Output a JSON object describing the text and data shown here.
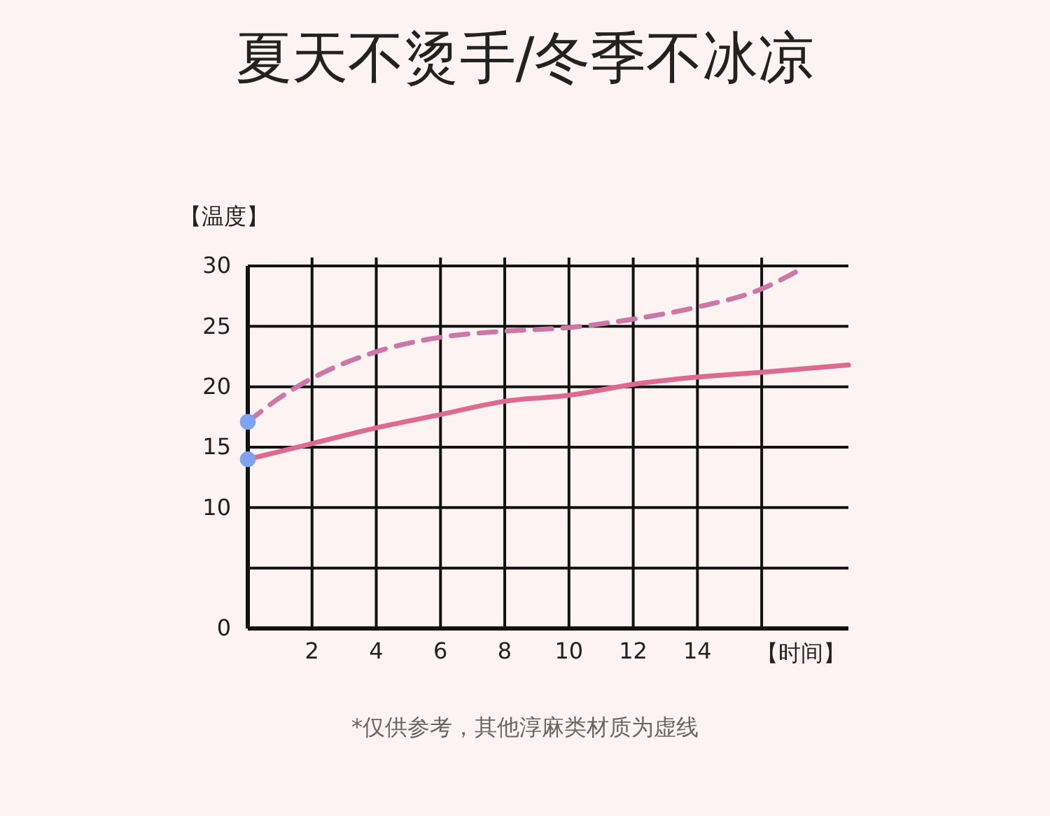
{
  "chart_data": {
    "type": "line",
    "title": "夏天不烫手/冬季不冰凉",
    "ylabel": "【温度】",
    "xlabel": "【时间】",
    "annotations": [
      "*仅供参考，其他淳麻类材质为虚线"
    ],
    "xlim": [
      0,
      18.7
    ],
    "xticks": [
      2,
      4,
      6,
      8,
      10,
      12,
      14,
      {
        "value": 16,
        "label": null
      }
    ],
    "ylim": [
      0,
      30
    ],
    "yticks": [
      0,
      {
        "value": 5,
        "label": null
      },
      10,
      15,
      20,
      25,
      30
    ],
    "grid": true,
    "series": [
      {
        "line_style": "solid",
        "marker": "none",
        "color": "#dd6a90",
        "x": [
          0,
          2,
          4,
          6,
          8,
          10,
          12,
          14,
          16,
          18.7
        ],
        "values": [
          14.0,
          15.3,
          16.6,
          17.7,
          18.8,
          19.3,
          20.2,
          20.8,
          21.2,
          21.8
        ]
      },
      {
        "line_style": "dashed",
        "marker": "none",
        "color": "#cc78a6",
        "x": [
          0,
          1,
          2,
          4,
          6,
          8,
          10,
          12,
          14,
          16,
          17.2
        ],
        "values": [
          17.1,
          19.1,
          20.7,
          22.9,
          24.1,
          24.6,
          24.9,
          25.6,
          26.6,
          28.1,
          29.7
        ]
      },
      {
        "type": "scatter",
        "marker": "circle",
        "color": "#7fa3f0",
        "x": [
          0,
          0
        ],
        "values": [
          14.0,
          17.1
        ]
      }
    ]
  }
}
